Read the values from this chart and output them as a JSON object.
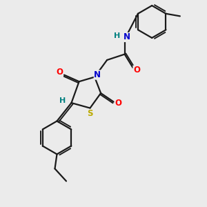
{
  "bg_color": "#ebebeb",
  "bond_color": "#1a1a1a",
  "bond_width": 1.6,
  "atom_colors": {
    "N": "#0000cc",
    "O": "#ff0000",
    "S": "#bbaa00",
    "H_label": "#008080",
    "C": "#1a1a1a"
  },
  "font_size": 8.5,
  "xlim": [
    0,
    10
  ],
  "ylim": [
    0,
    10
  ]
}
